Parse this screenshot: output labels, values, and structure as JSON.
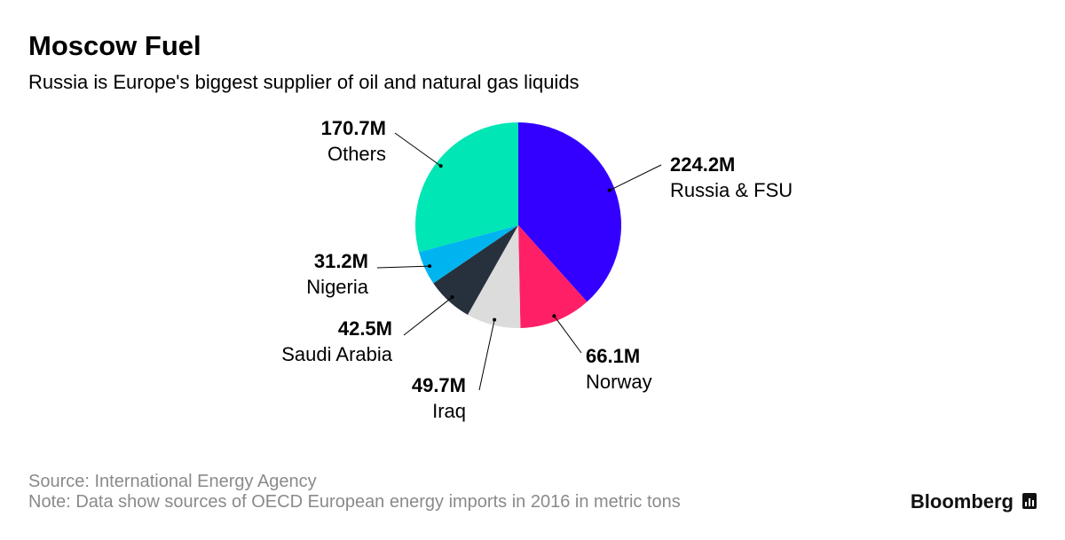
{
  "chart_data": {
    "type": "pie",
    "title": "Moscow Fuel",
    "subtitle": "Russia is Europe's biggest supplier of oil and natural gas liquids",
    "categories": [
      "Russia & FSU",
      "Norway",
      "Iraq",
      "Saudi Arabia",
      "Nigeria",
      "Others"
    ],
    "values": [
      224.2,
      66.1,
      49.7,
      42.5,
      31.2,
      170.7
    ],
    "value_labels": [
      "224.2M",
      "66.1M",
      "49.7M",
      "42.5M",
      "31.2M",
      "170.7M"
    ],
    "colors": [
      "#3300ff",
      "#ff1f66",
      "#dcdcdc",
      "#27313d",
      "#00b4f0",
      "#00e6b4"
    ],
    "source": "Source: International Energy Agency",
    "note": "Note: Data show sources of OECD European energy imports in 2016 in metric tons",
    "brand": "Bloomberg"
  }
}
